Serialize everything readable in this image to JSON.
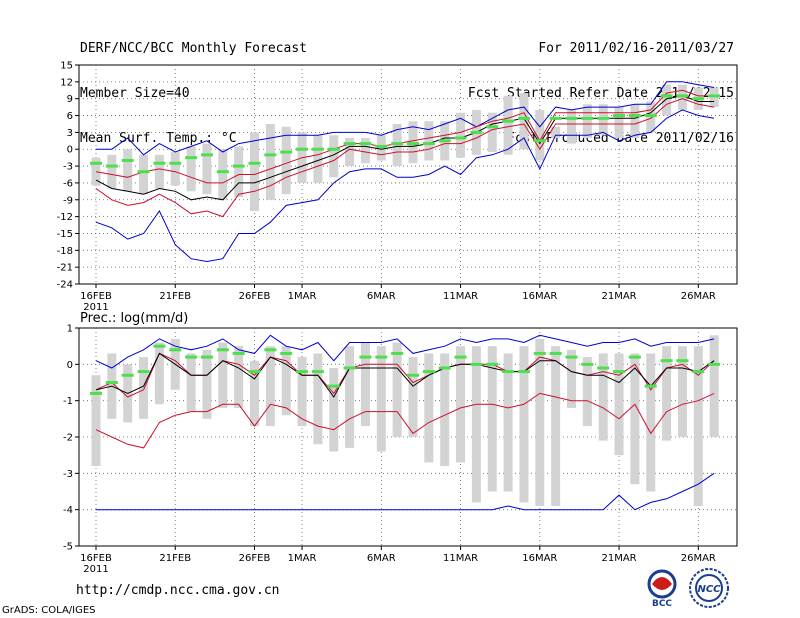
{
  "header": {
    "left": [
      "DERF/NCC/BCC Monthly Forecast",
      "Member Size=40",
      "Mean Surf. Temp.: °C"
    ],
    "right": [
      "For 2011/02/16-2011/03/27",
      "Fcst Started Refer Date 2011/02/15",
      "Fcst Produced Date 2011/02/16"
    ]
  },
  "footer": {
    "url": "http://cmdp.ncc.cma.gov.cn",
    "credit": "GrADS: COLA/IGES",
    "logo_left": "BCC",
    "logo_right": "NCC"
  },
  "colors": {
    "box": "#d3d3d3",
    "mean": "#4ce04c",
    "max": "#0000cc",
    "min": "#0000cc",
    "median": "#000000",
    "band": "#cc1030",
    "grid": "#666666"
  },
  "chart_data": [
    {
      "type": "line",
      "title": "Mean Surf. Temp.: °C",
      "ylim": [
        -24,
        15
      ],
      "yticks": [
        -24,
        -21,
        -18,
        -15,
        -12,
        -9,
        -6,
        -3,
        0,
        3,
        6,
        9,
        12,
        15
      ],
      "xtick_labels": [
        "16FEB",
        "21FEB",
        "26FEB",
        "1MAR",
        "6MAR",
        "11MAR",
        "16MAR",
        "21MAR",
        "26MAR"
      ],
      "xtick_days": [
        0,
        5,
        10,
        13,
        18,
        23,
        28,
        33,
        38
      ],
      "year_label": "2011",
      "x_days": [
        0,
        1,
        2,
        3,
        4,
        5,
        6,
        7,
        8,
        9,
        10,
        11,
        12,
        13,
        14,
        15,
        16,
        17,
        18,
        19,
        20,
        21,
        22,
        23,
        24,
        25,
        26,
        27,
        28,
        29,
        30,
        31,
        32,
        33,
        34,
        35,
        36,
        37,
        38,
        39
      ],
      "box_low": [
        -6.5,
        -7,
        -7.5,
        -8,
        -7,
        -6.5,
        -7.5,
        -8,
        -9,
        -8.5,
        -11,
        -9,
        -8,
        -6,
        -6,
        -5,
        -3,
        -2.5,
        -2,
        -3,
        -2.5,
        -2,
        -2,
        -1.5,
        -1,
        -0.5,
        -1,
        0,
        -2,
        2,
        1,
        2,
        2.5,
        2,
        2,
        3,
        6,
        7,
        7,
        7.5
      ],
      "box_high": [
        -1.5,
        -1,
        0,
        -1,
        -1,
        -0.5,
        0.5,
        1,
        0,
        0.5,
        3,
        4.5,
        4,
        3,
        2.5,
        2.5,
        2,
        2,
        2.5,
        4.5,
        5,
        5,
        5,
        6.5,
        7,
        6.5,
        9.5,
        10,
        7,
        4,
        7,
        8,
        8,
        7.5,
        8,
        8.5,
        11.5,
        11.5,
        11,
        11
      ],
      "mean": [
        -2.5,
        -3,
        -2,
        -4,
        -2.5,
        -2.5,
        -1.5,
        -1,
        -4,
        -3,
        -2.5,
        -1,
        -0.5,
        0,
        0,
        0,
        1,
        1,
        0.5,
        1,
        1,
        1,
        1.5,
        2,
        3,
        4,
        5,
        5.5,
        1.5,
        5.5,
        5.5,
        5.5,
        5.5,
        6,
        6,
        6,
        9.5,
        9.5,
        9,
        9.5
      ],
      "series": [
        {
          "name": "max",
          "color_key": "max",
          "values": [
            0,
            0,
            2,
            -1,
            1,
            -0.5,
            0.5,
            1.5,
            -0.5,
            1,
            1.5,
            2,
            2.5,
            2.5,
            2.5,
            3,
            3,
            3,
            2.5,
            3.5,
            4,
            3.5,
            4.5,
            5.5,
            4,
            5.5,
            7,
            7.5,
            4,
            7.5,
            7,
            7.5,
            7.5,
            7.5,
            8,
            8,
            12,
            12,
            11.5,
            11
          ]
        },
        {
          "name": "p75",
          "color_key": "band",
          "values": [
            -4,
            -4.5,
            -5,
            -4,
            -3.5,
            -4,
            -5,
            -6,
            -6,
            -4.5,
            -4.5,
            -3.5,
            -2.5,
            -1.5,
            -1,
            0,
            1,
            1,
            0.5,
            1,
            1.5,
            2,
            2.5,
            3,
            4,
            5,
            5.5,
            6.5,
            1.5,
            6.5,
            6.5,
            6.5,
            6.5,
            6.5,
            6.5,
            7,
            10,
            10.5,
            9.5,
            9.5
          ]
        },
        {
          "name": "median",
          "color_key": "median",
          "values": [
            -5.5,
            -7,
            -7.5,
            -8,
            -7,
            -7.5,
            -9,
            -8.5,
            -9,
            -6,
            -6,
            -5,
            -4,
            -3,
            -2,
            -1,
            0.5,
            0.5,
            0,
            0.5,
            0.5,
            1,
            2,
            2,
            3,
            4.5,
            5,
            5.5,
            1,
            5.5,
            5.5,
            5.5,
            5.5,
            5.5,
            5.5,
            6.5,
            9,
            9.5,
            8.5,
            8.5
          ]
        },
        {
          "name": "p25",
          "color_key": "band",
          "values": [
            -7,
            -9,
            -10,
            -9.5,
            -8,
            -9.5,
            -11.5,
            -11,
            -12,
            -8,
            -7.5,
            -6.5,
            -5,
            -4,
            -3,
            -2,
            0,
            -0.5,
            -1,
            -0.5,
            -0.5,
            0,
            1,
            1,
            2,
            3.5,
            4,
            4.5,
            0,
            4.5,
            4.5,
            4.5,
            4.5,
            4.5,
            4.5,
            5.5,
            8,
            9,
            8,
            7.5
          ]
        },
        {
          "name": "min",
          "color_key": "min",
          "values": [
            -13,
            -14,
            -16,
            -15,
            -11,
            -17,
            -19.5,
            -20,
            -19.5,
            -15,
            -15,
            -13,
            -10,
            -9.5,
            -9,
            -6,
            -4,
            -3.5,
            -3.5,
            -5,
            -5,
            -4.5,
            -3,
            -4.5,
            -1.5,
            -1,
            0,
            2,
            -3.5,
            2.5,
            2.5,
            2.5,
            3,
            1.5,
            2.5,
            3,
            5.5,
            7,
            6,
            5.5
          ]
        }
      ]
    },
    {
      "type": "line",
      "title": "Prec.: log(mm/d)",
      "ylim": [
        -5,
        1
      ],
      "yticks": [
        -5,
        -4,
        -3,
        -2,
        -1,
        0,
        1
      ],
      "xtick_labels": [
        "16FEB",
        "21FEB",
        "26FEB",
        "1MAR",
        "6MAR",
        "11MAR",
        "16MAR",
        "21MAR",
        "26MAR"
      ],
      "xtick_days": [
        0,
        5,
        10,
        13,
        18,
        23,
        28,
        33,
        38
      ],
      "year_label": "2011",
      "x_days": [
        0,
        1,
        2,
        3,
        4,
        5,
        6,
        7,
        8,
        9,
        10,
        11,
        12,
        13,
        14,
        15,
        16,
        17,
        18,
        19,
        20,
        21,
        22,
        23,
        24,
        25,
        26,
        27,
        28,
        29,
        30,
        31,
        32,
        33,
        34,
        35,
        36,
        37,
        38,
        39
      ],
      "box_low": [
        -2.8,
        -1.5,
        -1.6,
        -1.5,
        -1.1,
        -0.7,
        -1.3,
        -1.5,
        -1.2,
        -1.2,
        -1.7,
        -1.7,
        -1.4,
        -1.7,
        -2.2,
        -2.4,
        -2.3,
        -1.7,
        -2.4,
        -2,
        -2,
        -2.7,
        -2.8,
        -2.7,
        -3.8,
        -3.5,
        -3.5,
        -3.8,
        -3.9,
        -3.9,
        -1.2,
        -1.7,
        -2.1,
        -2.5,
        -3.3,
        -3.5,
        -2.1,
        -2,
        -3.9,
        -2
      ],
      "box_high": [
        -0.3,
        0.3,
        0,
        0.2,
        0.6,
        0.7,
        0.3,
        0.4,
        0.6,
        0.5,
        0.1,
        0.5,
        0.5,
        0.2,
        0.3,
        -0.1,
        0.5,
        0.6,
        0.5,
        0.6,
        0.2,
        0.3,
        0.3,
        0.5,
        0.5,
        0.5,
        0.3,
        0.5,
        0.7,
        0.5,
        0.4,
        0.2,
        0.3,
        0.3,
        0.3,
        0.3,
        0.5,
        0.5,
        0.5,
        0.8
      ],
      "mean": [
        -0.8,
        -0.5,
        -0.3,
        -0.2,
        0.5,
        0.4,
        0.2,
        0.2,
        0.4,
        0.3,
        -0.2,
        0.4,
        0.3,
        -0.2,
        -0.2,
        -0.6,
        -0.1,
        0.2,
        0.2,
        0.3,
        -0.3,
        -0.2,
        -0.1,
        0.2,
        0,
        0,
        -0.2,
        -0.2,
        0.3,
        0.3,
        0.2,
        0,
        -0.1,
        -0.2,
        0.2,
        -0.6,
        0.1,
        0.1,
        -0.2,
        0
      ],
      "series": [
        {
          "name": "max",
          "color_key": "max",
          "values": [
            0.1,
            -0.1,
            0.2,
            0.4,
            0.7,
            0.5,
            0.4,
            0.5,
            0.7,
            0.4,
            0.3,
            0.8,
            0.5,
            0.4,
            0.6,
            0.1,
            0.6,
            0.6,
            0.6,
            0.7,
            0.3,
            0.4,
            0.5,
            0.7,
            0.6,
            0.7,
            0.7,
            0.6,
            0.8,
            0.7,
            0.6,
            0.5,
            0.6,
            0.6,
            0.7,
            0.5,
            0.6,
            0.6,
            0.6,
            0.7
          ]
        },
        {
          "name": "p75",
          "color_key": "band",
          "values": [
            -0.7,
            -0.5,
            -0.9,
            -0.7,
            0.3,
            0.1,
            -0.3,
            -0.3,
            0.1,
            0,
            -0.3,
            0.2,
            0.1,
            -0.3,
            -0.3,
            -0.8,
            -0.1,
            0,
            0,
            0,
            -0.5,
            -0.3,
            -0.1,
            0,
            0,
            0,
            -0.2,
            -0.2,
            0.2,
            0.1,
            -0.2,
            -0.3,
            -0.2,
            -0.3,
            0,
            -0.7,
            -0.1,
            0,
            -0.3,
            0.1
          ]
        },
        {
          "name": "median",
          "color_key": "median",
          "values": [
            -0.7,
            -0.6,
            -0.8,
            -0.6,
            0.3,
            0,
            -0.3,
            -0.3,
            0.1,
            -0.1,
            -0.4,
            0.2,
            0,
            -0.3,
            -0.3,
            -0.9,
            -0.1,
            -0.1,
            -0.1,
            -0.1,
            -0.6,
            -0.3,
            -0.1,
            0,
            0,
            -0.1,
            -0.2,
            -0.2,
            0.1,
            0.1,
            -0.2,
            -0.3,
            -0.3,
            -0.5,
            -0.1,
            -0.6,
            -0.1,
            -0.1,
            -0.2,
            0.1
          ]
        },
        {
          "name": "p25",
          "color_key": "band",
          "values": [
            -1.8,
            -2,
            -2.2,
            -2.3,
            -1.6,
            -1.4,
            -1.3,
            -1.3,
            -1.1,
            -1.1,
            -1.7,
            -1.1,
            -1.2,
            -1.5,
            -1.7,
            -1.8,
            -1.5,
            -1.3,
            -1.3,
            -1.3,
            -1.9,
            -1.6,
            -1.4,
            -1.2,
            -1.1,
            -1.1,
            -1.2,
            -1.1,
            -0.8,
            -0.9,
            -1,
            -1,
            -1.2,
            -1.5,
            -1.1,
            -1.9,
            -1.3,
            -1.1,
            -1,
            -0.8
          ]
        },
        {
          "name": "min",
          "color_key": "min",
          "values": [
            -4,
            -4,
            -4,
            -4,
            -4,
            -4,
            -4,
            -4,
            -4,
            -4,
            -4,
            -4,
            -4,
            -4,
            -4,
            -4,
            -4,
            -4,
            -4,
            -4,
            -4,
            -4,
            -4,
            -4,
            -4,
            -4,
            -3.9,
            -4,
            -4,
            -4,
            -4,
            -4,
            -4,
            -3.6,
            -4,
            -3.8,
            -3.7,
            -3.5,
            -3.3,
            -3
          ]
        }
      ]
    }
  ]
}
